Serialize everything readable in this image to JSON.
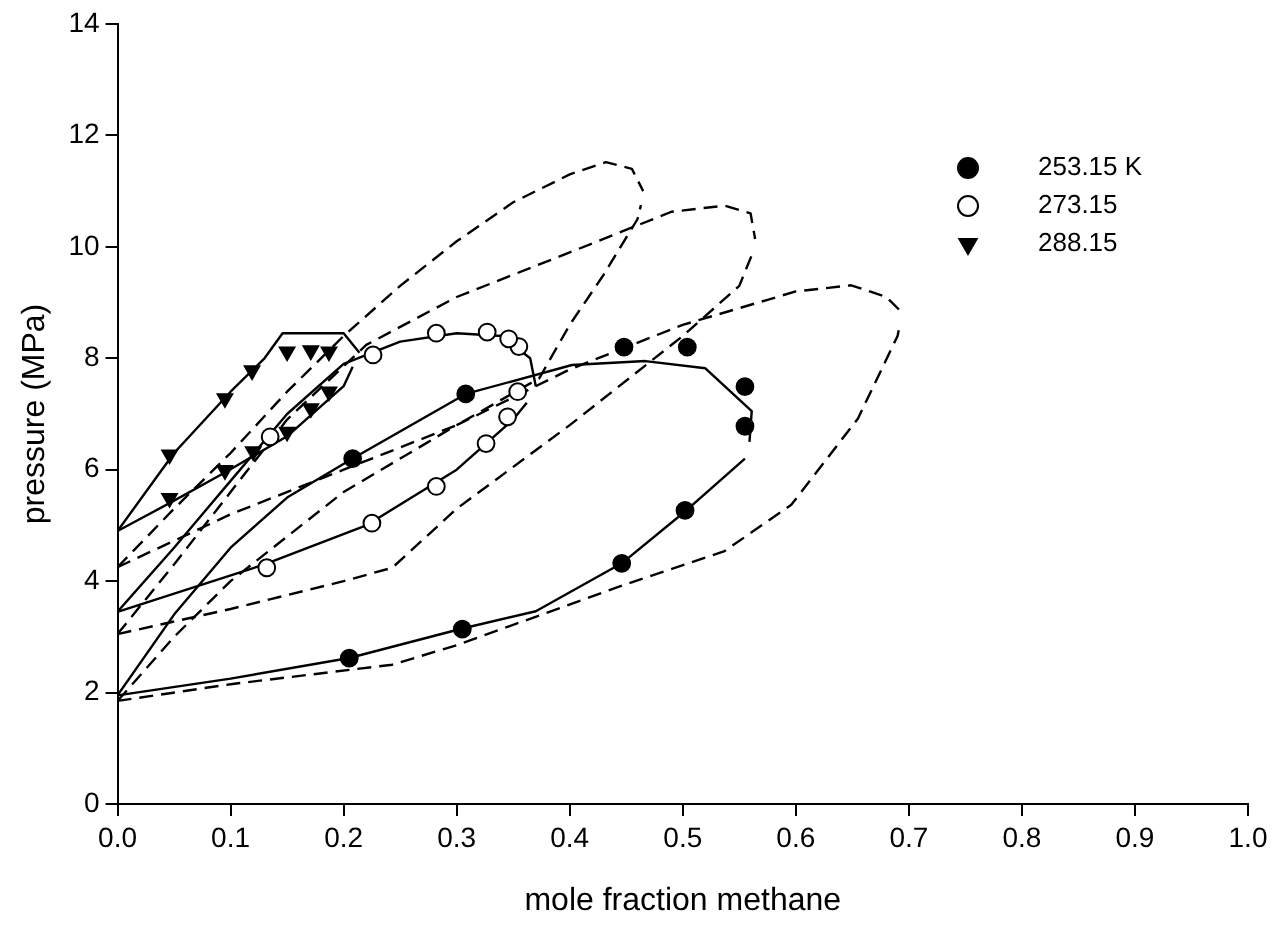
{
  "chart_data": {
    "type": "scatter",
    "xlabel": "mole fraction methane",
    "ylabel": "pressure (MPa)",
    "xlim": [
      0,
      1
    ],
    "xticks": [
      {
        "value": 0,
        "label": "0.0"
      },
      0.1,
      0.2,
      0.3,
      0.4,
      0.5,
      0.6,
      0.7,
      0.8,
      0.9,
      {
        "value": 1,
        "label": "1.0"
      }
    ],
    "ylim": [
      0,
      14
    ],
    "yticks": [
      0,
      2,
      4,
      6,
      8,
      10,
      12,
      14
    ],
    "grid": false,
    "legend": "top right",
    "series": [
      {
        "name": "253.15 K",
        "type": "scatter",
        "marker": "circle",
        "color": "#000000",
        "x": [
          0.205,
          0.305,
          0.446,
          0.502,
          0.555,
          0.555,
          0.504,
          0.448,
          0.308,
          0.208
        ],
        "values": [
          2.62,
          3.14,
          4.32,
          5.27,
          6.78,
          7.49,
          8.2,
          8.2,
          7.36,
          6.2
        ]
      },
      {
        "name": "273.15",
        "type": "scatter",
        "marker": "circle",
        "color": "#ffffff",
        "x": [
          0.132,
          0.225,
          0.282,
          0.326,
          0.345,
          0.354,
          0.355,
          0.346,
          0.327,
          0.282,
          0.226,
          0.135
        ],
        "values": [
          4.24,
          5.04,
          5.7,
          6.47,
          6.95,
          7.4,
          8.21,
          8.35,
          8.47,
          8.45,
          8.06,
          6.59
        ]
      },
      {
        "name": "288.15",
        "type": "scatter",
        "marker": "triangle",
        "color": "#000000",
        "x": [
          0.046,
          0.046,
          0.095,
          0.095,
          0.119,
          0.12,
          0.15,
          0.15,
          0.171,
          0.171,
          0.187,
          0.187
        ],
        "values": [
          6.27,
          5.49,
          7.28,
          5.99,
          7.78,
          6.33,
          6.68,
          8.12,
          8.14,
          7.1,
          8.12,
          7.4
        ]
      },
      {
        "type": "line",
        "line_style": "solid",
        "marker": "none",
        "color": "#000000",
        "x": [
          0,
          0.05,
          0.1,
          0.13,
          0.146,
          0.2,
          0.214
        ],
        "values": [
          4.9,
          6.3,
          7.4,
          8.0,
          8.45,
          8.45,
          8.1
        ]
      },
      {
        "type": "line",
        "line_style": "solid",
        "marker": "none",
        "color": "#000000",
        "x": [
          0,
          0.046,
          0.095,
          0.15,
          0.2,
          0.208
        ],
        "values": [
          4.9,
          5.4,
          5.95,
          6.6,
          7.5,
          7.85
        ]
      },
      {
        "type": "line",
        "line_style": "solid",
        "marker": "none",
        "color": "#000000",
        "x": [
          0,
          0.05,
          0.1,
          0.15,
          0.2,
          0.25,
          0.3,
          0.34,
          0.365,
          0.37
        ],
        "values": [
          3.45,
          4.6,
          5.8,
          7.0,
          7.9,
          8.3,
          8.45,
          8.4,
          8.0,
          7.5
        ]
      },
      {
        "type": "line",
        "line_style": "solid",
        "marker": "none",
        "color": "#000000",
        "x": [
          0,
          0.13,
          0.22,
          0.3,
          0.35,
          0.362
        ],
        "values": [
          3.45,
          4.3,
          5.0,
          6.0,
          6.9,
          7.2
        ]
      },
      {
        "type": "line",
        "line_style": "solid",
        "marker": "none",
        "color": "#000000",
        "x": [
          0,
          0.05,
          0.1,
          0.15,
          0.208,
          0.308,
          0.402,
          0.467,
          0.52,
          0.561,
          0.559
        ],
        "values": [
          1.95,
          3.4,
          4.6,
          5.5,
          6.2,
          7.36,
          7.88,
          7.95,
          7.82,
          7.05,
          6.5
        ]
      },
      {
        "type": "line",
        "line_style": "solid",
        "marker": "none",
        "color": "#000000",
        "x": [
          0,
          0.1,
          0.205,
          0.305,
          0.37,
          0.446,
          0.502,
          0.555
        ],
        "values": [
          1.95,
          2.25,
          2.62,
          3.15,
          3.46,
          4.32,
          5.25,
          6.2
        ]
      },
      {
        "type": "line",
        "line_style": "dashed",
        "marker": "none",
        "color": "#000000",
        "x": [
          0,
          0.05,
          0.1,
          0.15,
          0.2,
          0.25,
          0.3,
          0.35,
          0.4,
          0.432,
          0.455,
          0.465
        ],
        "values": [
          4.25,
          5.3,
          6.3,
          7.4,
          8.4,
          9.3,
          10.1,
          10.8,
          11.3,
          11.52,
          11.4,
          11.0
        ]
      },
      {
        "type": "line",
        "line_style": "dashed",
        "marker": "none",
        "color": "#000000",
        "x": [
          0,
          0.1,
          0.2,
          0.3,
          0.373,
          0.4,
          0.43,
          0.46,
          0.463
        ],
        "values": [
          4.25,
          5.2,
          6.0,
          6.8,
          7.64,
          8.6,
          9.5,
          10.5,
          10.75
        ]
      },
      {
        "type": "line",
        "line_style": "dashed",
        "marker": "none",
        "color": "#000000",
        "x": [
          0,
          0.05,
          0.1,
          0.15,
          0.22,
          0.3,
          0.4,
          0.49,
          0.537,
          0.56,
          0.564
        ],
        "values": [
          3.05,
          4.3,
          5.6,
          6.9,
          8.24,
          9.1,
          9.9,
          10.63,
          10.74,
          10.6,
          10.14
        ]
      },
      {
        "type": "line",
        "line_style": "dashed",
        "marker": "none",
        "color": "#000000",
        "x": [
          0,
          0.1,
          0.2,
          0.243,
          0.3,
          0.4,
          0.5,
          0.55,
          0.561
        ],
        "values": [
          3.05,
          3.5,
          4.0,
          4.24,
          5.3,
          6.8,
          8.4,
          9.3,
          9.85
        ]
      },
      {
        "type": "line",
        "line_style": "dashed",
        "marker": "none",
        "color": "#000000",
        "x": [
          0,
          0.05,
          0.1,
          0.2,
          0.3,
          0.4,
          0.5,
          0.6,
          0.649,
          0.68,
          0.693
        ],
        "values": [
          1.85,
          3.0,
          4.0,
          5.6,
          6.8,
          7.8,
          8.6,
          9.2,
          9.31,
          9.1,
          8.84
        ]
      },
      {
        "type": "line",
        "line_style": "dashed",
        "marker": "none",
        "color": "#000000",
        "x": [
          0,
          0.1,
          0.243,
          0.3,
          0.449,
          0.537,
          0.596,
          0.655,
          0.69,
          0.692
        ],
        "values": [
          1.85,
          2.15,
          2.5,
          2.85,
          3.94,
          4.54,
          5.37,
          6.92,
          8.4,
          8.6
        ]
      }
    ]
  }
}
